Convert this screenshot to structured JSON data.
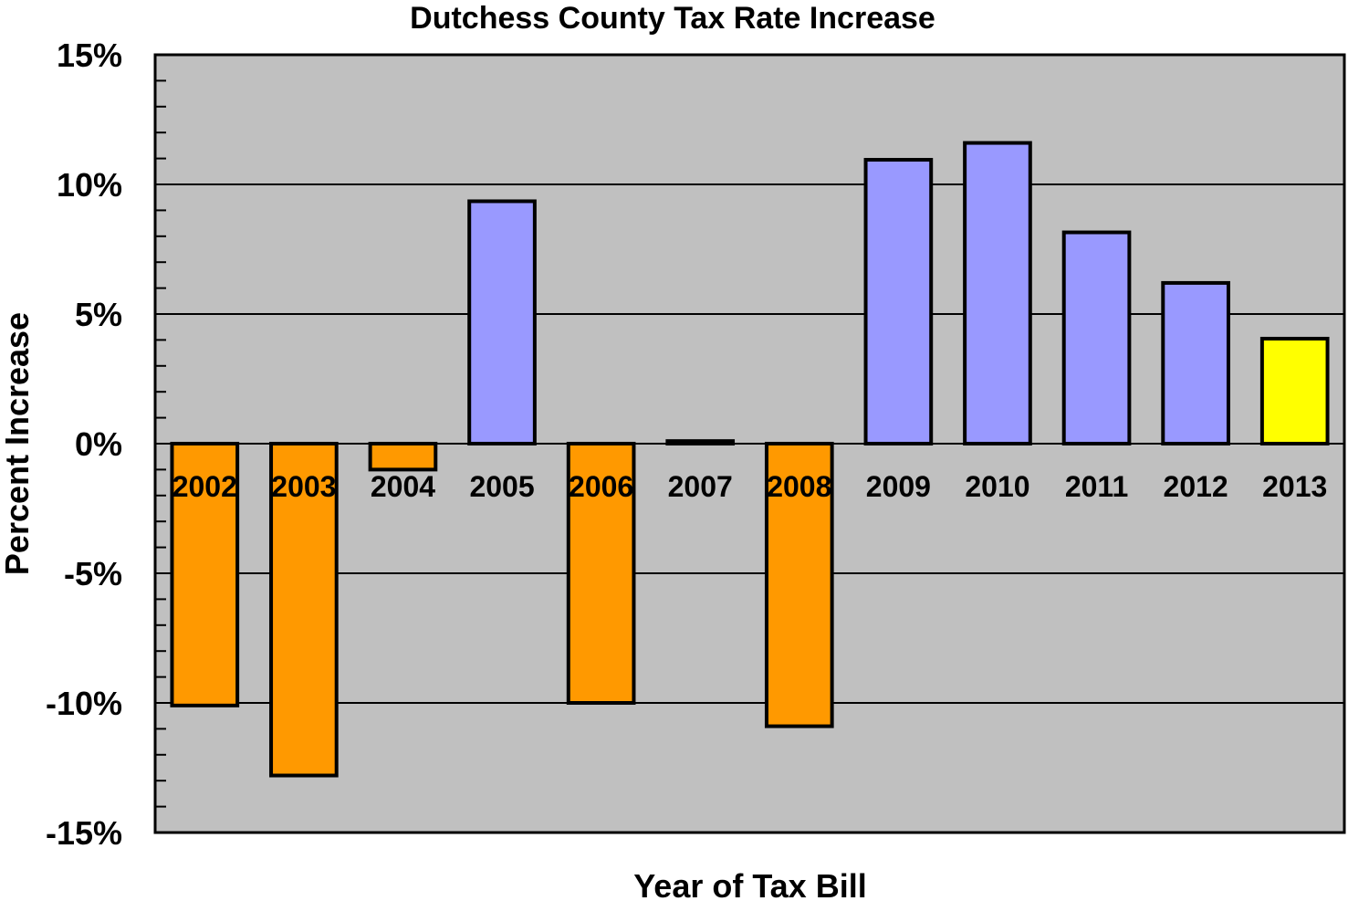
{
  "chart_data": {
    "type": "bar",
    "title": "Dutchess County Tax Rate Increase",
    "xlabel": "Year of Tax Bill",
    "ylabel": "Percent Increase",
    "categories": [
      "2002",
      "2003",
      "2004",
      "2005",
      "2006",
      "2007",
      "2008",
      "2009",
      "2010",
      "2011",
      "2012",
      "2013"
    ],
    "values": [
      -10.1,
      -12.8,
      -1.0,
      9.35,
      -10.0,
      0.1,
      -10.9,
      10.95,
      11.6,
      8.15,
      6.2,
      4.05
    ],
    "ylim": [
      -15,
      15
    ],
    "yticks": [
      15,
      10,
      5,
      0,
      -5,
      -10,
      -15
    ],
    "ytick_labels": [
      "15%",
      "10%",
      "5%",
      "0%",
      "-5%",
      "-10%",
      "-15%"
    ],
    "grid": true,
    "colors": {
      "plot_background": "#c0c0c0",
      "decrease": "#ff9900",
      "increase": "#9999ff",
      "highlight": "#ffff00",
      "outline": "#000000"
    },
    "bar_color_roles": [
      "decrease",
      "decrease",
      "decrease",
      "increase",
      "decrease",
      "decrease",
      "decrease",
      "increase",
      "increase",
      "increase",
      "increase",
      "highlight"
    ]
  }
}
